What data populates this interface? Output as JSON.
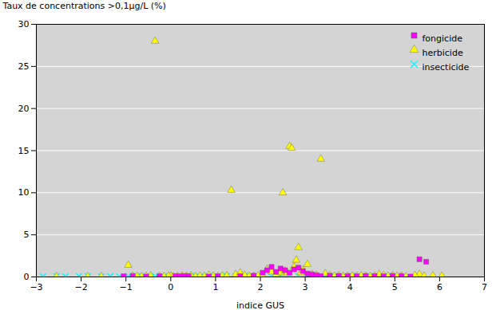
{
  "chart_data": {
    "type": "scatter",
    "xlabel": "indice GUS",
    "ylabel": "Taux de concentrations >0,1µg/L (%)",
    "xlim": [
      -3,
      7
    ],
    "ylim": [
      0,
      30
    ],
    "xticks": [
      -3,
      -2,
      -1,
      0,
      1,
      2,
      3,
      4,
      5,
      6,
      7
    ],
    "yticks": [
      0,
      5,
      10,
      15,
      20,
      25,
      30
    ],
    "grid": "y",
    "legend": "upper right",
    "series": [
      {
        "name": "insecticide",
        "color": "#00FFFF",
        "marker": "x",
        "points": [
          [
            -2.85,
            0.05
          ],
          [
            -2.55,
            0.08
          ],
          [
            -2.35,
            0.05
          ],
          [
            -2.05,
            0.1
          ],
          [
            -1.85,
            0.08
          ],
          [
            -1.55,
            0.05
          ],
          [
            -1.35,
            0.08
          ],
          [
            -1.15,
            0.05
          ],
          [
            -0.95,
            0.1
          ],
          [
            -0.75,
            0.08
          ],
          [
            -0.55,
            0.05
          ],
          [
            -0.35,
            0.08
          ],
          [
            -0.15,
            0.05
          ],
          [
            0.05,
            0.08
          ],
          [
            0.25,
            0.05
          ],
          [
            0.45,
            0.08
          ],
          [
            0.65,
            0.05
          ],
          [
            0.85,
            0.08
          ],
          [
            1.05,
            0.05
          ],
          [
            1.25,
            0.08
          ],
          [
            1.45,
            0.05
          ],
          [
            1.65,
            0.08
          ],
          [
            1.85,
            0.05
          ],
          [
            2.05,
            0.08
          ],
          [
            2.25,
            0.05
          ],
          [
            2.45,
            0.08
          ],
          [
            2.65,
            0.05
          ],
          [
            2.85,
            0.08
          ],
          [
            3.05,
            0.05
          ],
          [
            3.25,
            0.08
          ],
          [
            3.45,
            0.05
          ],
          [
            3.65,
            0.08
          ],
          [
            3.85,
            0.05
          ],
          [
            4.05,
            0.08
          ],
          [
            4.25,
            0.05
          ],
          [
            4.45,
            0.08
          ],
          [
            4.65,
            0.05
          ],
          [
            4.85,
            0.08
          ]
        ]
      },
      {
        "name": "herbicide",
        "color": "#FFFF00",
        "marker": "triangle",
        "points": [
          [
            -0.35,
            28.0
          ],
          [
            -0.95,
            1.4
          ],
          [
            1.35,
            10.3
          ],
          [
            2.5,
            10.0
          ],
          [
            2.65,
            15.5
          ],
          [
            2.7,
            15.3
          ],
          [
            2.85,
            3.5
          ],
          [
            3.35,
            14.0
          ],
          [
            0.0,
            0.1
          ],
          [
            0.05,
            0.05
          ],
          [
            0.15,
            0.08
          ],
          [
            0.25,
            0.12
          ],
          [
            0.35,
            0.1
          ],
          [
            0.45,
            0.15
          ],
          [
            0.55,
            0.05
          ],
          [
            0.65,
            0.1
          ],
          [
            0.75,
            0.08
          ],
          [
            0.85,
            0.2
          ],
          [
            0.95,
            0.1
          ],
          [
            1.05,
            0.05
          ],
          [
            1.15,
            0.12
          ],
          [
            1.25,
            0.15
          ],
          [
            1.45,
            0.3
          ],
          [
            1.55,
            0.5
          ],
          [
            1.65,
            0.2
          ],
          [
            1.75,
            0.1
          ],
          [
            1.85,
            0.08
          ],
          [
            1.95,
            0.12
          ],
          [
            2.05,
            0.15
          ],
          [
            2.15,
            0.9
          ],
          [
            2.25,
            0.6
          ],
          [
            2.35,
            0.3
          ],
          [
            2.45,
            0.5
          ],
          [
            2.55,
            0.7
          ],
          [
            2.6,
            0.5
          ],
          [
            2.75,
            1.2
          ],
          [
            2.8,
            2.0
          ],
          [
            2.9,
            0.5
          ],
          [
            2.95,
            0.8
          ],
          [
            3.05,
            1.5
          ],
          [
            3.15,
            0.3
          ],
          [
            3.25,
            0.2
          ],
          [
            3.45,
            0.4
          ],
          [
            3.55,
            0.2
          ],
          [
            3.65,
            0.1
          ],
          [
            3.75,
            0.15
          ],
          [
            3.85,
            0.05
          ],
          [
            3.95,
            0.1
          ],
          [
            4.05,
            0.12
          ],
          [
            4.15,
            0.08
          ],
          [
            4.25,
            0.15
          ],
          [
            4.35,
            0.1
          ],
          [
            4.45,
            0.05
          ],
          [
            4.55,
            0.12
          ],
          [
            4.65,
            0.3
          ],
          [
            4.75,
            0.2
          ],
          [
            4.85,
            0.1
          ],
          [
            4.95,
            0.15
          ],
          [
            5.05,
            0.08
          ],
          [
            5.15,
            0.1
          ],
          [
            5.25,
            0.05
          ],
          [
            5.55,
            0.3
          ],
          [
            5.85,
            0.15
          ],
          [
            6.05,
            0.1
          ],
          [
            -0.05,
            0.1
          ],
          [
            -0.15,
            0.05
          ],
          [
            -0.25,
            0.08
          ],
          [
            -0.45,
            0.12
          ],
          [
            -0.55,
            0.1
          ],
          [
            -0.65,
            0.05
          ],
          [
            -0.75,
            0.08
          ],
          [
            -0.85,
            0.1
          ],
          [
            -1.55,
            0.05
          ],
          [
            -1.85,
            0.05
          ],
          [
            -2.55,
            0.05
          ],
          [
            5.45,
            0.2
          ],
          [
            5.65,
            0.1
          ]
        ]
      },
      {
        "name": "fongicide",
        "color": "#FF00FF",
        "marker": "square",
        "points": [
          [
            5.55,
            2.1
          ],
          [
            5.7,
            1.8
          ],
          [
            0.1,
            0.1
          ],
          [
            0.2,
            0.08
          ],
          [
            0.3,
            0.12
          ],
          [
            0.4,
            0.1
          ],
          [
            0.85,
            0.05
          ],
          [
            1.05,
            0.08
          ],
          [
            1.55,
            0.1
          ],
          [
            1.85,
            0.15
          ],
          [
            2.05,
            0.5
          ],
          [
            2.15,
            0.8
          ],
          [
            2.25,
            1.2
          ],
          [
            2.35,
            0.6
          ],
          [
            2.45,
            1.0
          ],
          [
            2.55,
            0.8
          ],
          [
            2.65,
            0.5
          ],
          [
            2.75,
            0.9
          ],
          [
            2.85,
            1.1
          ],
          [
            2.95,
            0.7
          ],
          [
            3.05,
            0.4
          ],
          [
            3.15,
            0.3
          ],
          [
            3.25,
            0.2
          ],
          [
            3.35,
            0.1
          ],
          [
            3.55,
            0.15
          ],
          [
            3.75,
            0.12
          ],
          [
            3.95,
            0.1
          ],
          [
            4.15,
            0.08
          ],
          [
            4.35,
            0.12
          ],
          [
            4.55,
            0.1
          ],
          [
            4.75,
            0.08
          ],
          [
            4.95,
            0.12
          ],
          [
            5.15,
            0.1
          ],
          [
            5.35,
            0.05
          ],
          [
            -1.05,
            0.08
          ],
          [
            -0.85,
            0.1
          ],
          [
            -0.55,
            0.05
          ],
          [
            -0.25,
            0.08
          ]
        ]
      }
    ]
  }
}
